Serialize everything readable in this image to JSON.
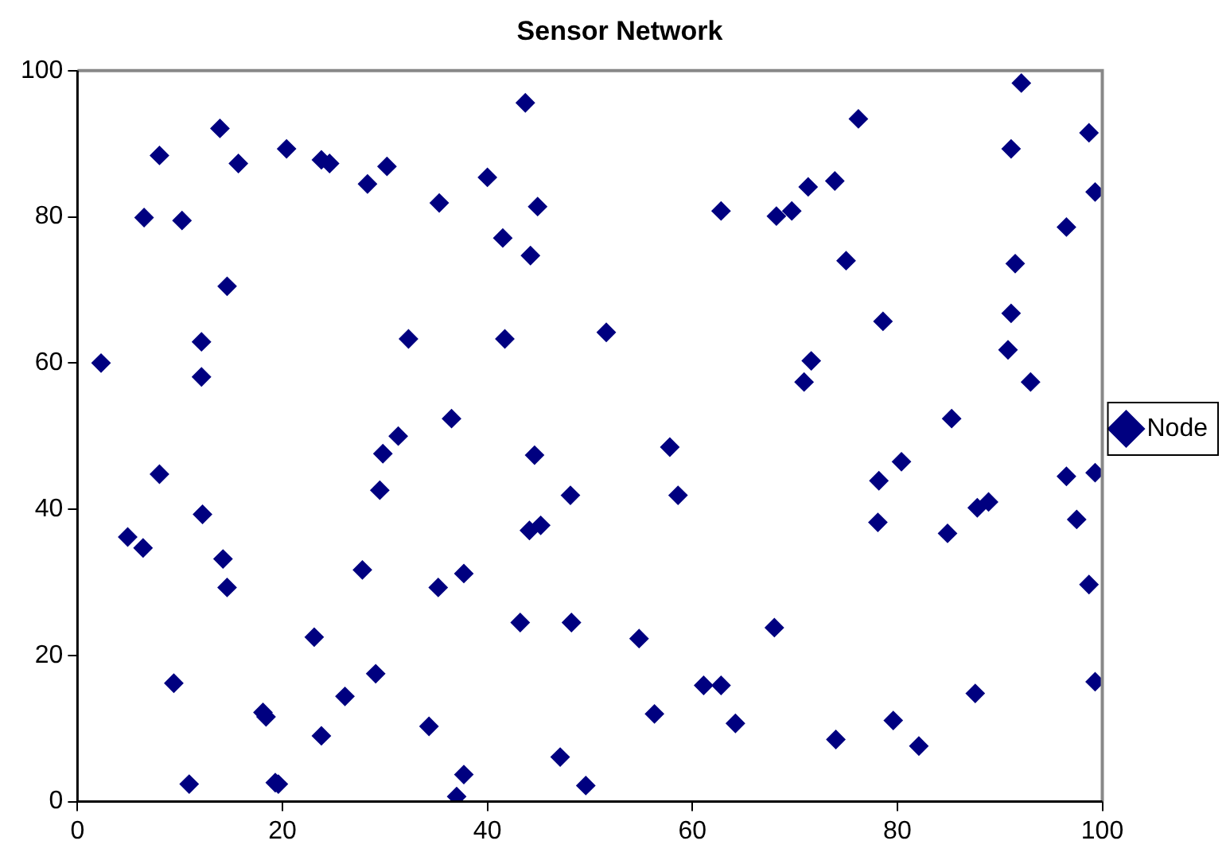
{
  "chart_data": {
    "type": "scatter",
    "title": "Sensor Network",
    "xlim": [
      0,
      100
    ],
    "ylim": [
      0,
      100
    ],
    "xticks": [
      0,
      20,
      40,
      60,
      80,
      100
    ],
    "yticks": [
      0,
      20,
      40,
      60,
      80,
      100
    ],
    "grid": false,
    "legend": "right",
    "marker": "diamond",
    "series": [
      {
        "name": "Node",
        "color": "#000080",
        "x": [
          2.3,
          4.9,
          6.4,
          6.5,
          8.0,
          8.0,
          9.4,
          10.2,
          10.9,
          12.1,
          12.1,
          12.2,
          13.9,
          14.2,
          14.6,
          14.6,
          15.7,
          18.1,
          18.4,
          19.3,
          19.6,
          20.4,
          23.1,
          23.8,
          23.8,
          24.6,
          26.1,
          27.8,
          28.3,
          29.1,
          29.5,
          29.8,
          30.2,
          31.3,
          32.3,
          34.3,
          35.3,
          35.2,
          36.5,
          37.0,
          37.7,
          37.7,
          40.0,
          41.5,
          41.7,
          43.2,
          43.7,
          44.1,
          44.2,
          44.6,
          44.9,
          45.2,
          47.1,
          48.1,
          48.2,
          49.6,
          51.6,
          54.8,
          56.3,
          57.8,
          58.6,
          61.1,
          62.8,
          62.8,
          64.2,
          68.2,
          68.0,
          69.7,
          70.9,
          71.3,
          71.6,
          73.9,
          74.0,
          75.0,
          76.2,
          78.1,
          78.2,
          78.6,
          79.6,
          80.4,
          82.1,
          84.9,
          85.3,
          87.6,
          87.8,
          88.9,
          90.8,
          91.1,
          91.1,
          91.5,
          92.1,
          93.0,
          96.5,
          96.5,
          97.5,
          98.7,
          98.7,
          99.3,
          99.3,
          99.3
        ],
        "values": [
          60,
          36.2,
          34.7,
          79.9,
          44.8,
          88.4,
          16.2,
          79.5,
          2.4,
          62.9,
          58.1,
          39.3,
          92.1,
          33.2,
          70.5,
          29.3,
          87.3,
          12.2,
          11.6,
          2.6,
          2.4,
          89.3,
          22.5,
          87.8,
          9.0,
          87.3,
          14.4,
          31.7,
          84.5,
          17.5,
          42.6,
          47.6,
          86.9,
          50.0,
          63.3,
          10.3,
          81.9,
          29.3,
          52.4,
          0.7,
          3.7,
          31.2,
          85.4,
          77.1,
          63.3,
          24.5,
          95.6,
          37.1,
          74.7,
          47.4,
          81.4,
          37.8,
          6.1,
          41.9,
          24.5,
          2.2,
          64.2,
          22.3,
          12.0,
          48.5,
          41.9,
          15.9,
          80.8,
          15.9,
          10.7,
          80.1,
          23.8,
          80.8,
          57.4,
          84.1,
          60.3,
          84.9,
          8.5,
          74.0,
          93.4,
          38.2,
          43.9,
          65.7,
          11.1,
          46.5,
          7.6,
          36.7,
          52.4,
          14.8,
          40.2,
          41.0,
          61.8,
          66.8,
          89.3,
          73.6,
          98.3,
          57.4,
          78.6,
          44.5,
          38.6,
          91.5,
          29.7,
          83.4,
          45.0,
          16.4
        ]
      }
    ]
  }
}
